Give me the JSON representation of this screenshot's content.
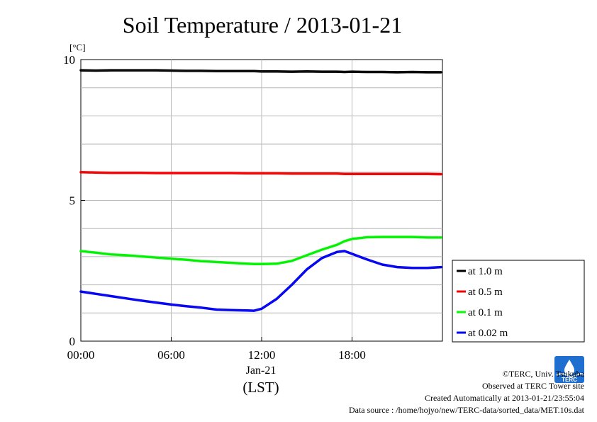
{
  "chart_data": {
    "type": "line",
    "title": "Soil Temperature / 2013-01-21",
    "ylabel": "[°C]",
    "xlabel": "(LST)",
    "date_label": "Jan-21",
    "x_unit": "hours (LST)",
    "xlim": [
      0,
      24
    ],
    "ylim": [
      0,
      10
    ],
    "x_ticks": [
      {
        "value": 0,
        "label": "00:00"
      },
      {
        "value": 6,
        "label": "06:00"
      },
      {
        "value": 12,
        "label": "12:00"
      },
      {
        "value": 18,
        "label": "18:00"
      }
    ],
    "y_ticks": [
      {
        "value": 0,
        "label": "0"
      },
      {
        "value": 5,
        "label": "5"
      },
      {
        "value": 10,
        "label": "10"
      }
    ],
    "y_gridlines": [
      1,
      2,
      3,
      4,
      5,
      6,
      7,
      8,
      9
    ],
    "x_gridlines": [
      6,
      12,
      18
    ],
    "grid": true,
    "legend_position": "right",
    "x": [
      0,
      1,
      2,
      3,
      4,
      5,
      6,
      7,
      8,
      9,
      10,
      11,
      11.5,
      12,
      13,
      14,
      15,
      16,
      17,
      17.5,
      18,
      19,
      20,
      21,
      22,
      23,
      23.9
    ],
    "series": [
      {
        "name": "at 1.0 m",
        "color": "#000000",
        "values": [
          9.62,
          9.61,
          9.62,
          9.62,
          9.62,
          9.62,
          9.61,
          9.6,
          9.6,
          9.59,
          9.59,
          9.59,
          9.59,
          9.58,
          9.58,
          9.57,
          9.58,
          9.57,
          9.57,
          9.56,
          9.57,
          9.56,
          9.56,
          9.55,
          9.56,
          9.55,
          9.55
        ]
      },
      {
        "name": "at 0.5 m",
        "color": "#ff0000",
        "values": [
          6.0,
          5.99,
          5.98,
          5.98,
          5.98,
          5.97,
          5.97,
          5.97,
          5.97,
          5.97,
          5.97,
          5.96,
          5.96,
          5.96,
          5.96,
          5.95,
          5.95,
          5.95,
          5.95,
          5.94,
          5.94,
          5.94,
          5.94,
          5.94,
          5.94,
          5.94,
          5.93
        ]
      },
      {
        "name": "at 0.1 m",
        "color": "#00ff00",
        "values": [
          3.2,
          3.14,
          3.08,
          3.05,
          3.01,
          2.97,
          2.93,
          2.89,
          2.84,
          2.81,
          2.78,
          2.75,
          2.74,
          2.74,
          2.75,
          2.85,
          3.05,
          3.25,
          3.42,
          3.55,
          3.63,
          3.69,
          3.7,
          3.7,
          3.7,
          3.68,
          3.68
        ]
      },
      {
        "name": "at 0.02 m",
        "color": "#0000ff",
        "values": [
          1.76,
          1.68,
          1.6,
          1.52,
          1.44,
          1.37,
          1.3,
          1.24,
          1.19,
          1.12,
          1.1,
          1.09,
          1.08,
          1.15,
          1.5,
          2.0,
          2.55,
          2.95,
          3.17,
          3.2,
          3.1,
          2.9,
          2.72,
          2.63,
          2.6,
          2.6,
          2.63
        ]
      }
    ]
  },
  "footer": {
    "copyright": "©TERC, Univ. Tsukuba",
    "observed": "Observed at TERC Tower site",
    "created": "Created Automatically at 2013-01-21/23:55:04",
    "source": "Data source : /home/hojyo/new/TERC-data/sorted_data/MET.10s.dat"
  },
  "logo": {
    "name": "terc-logo-icon",
    "text": "TERC",
    "color": "#1e6fd0"
  }
}
